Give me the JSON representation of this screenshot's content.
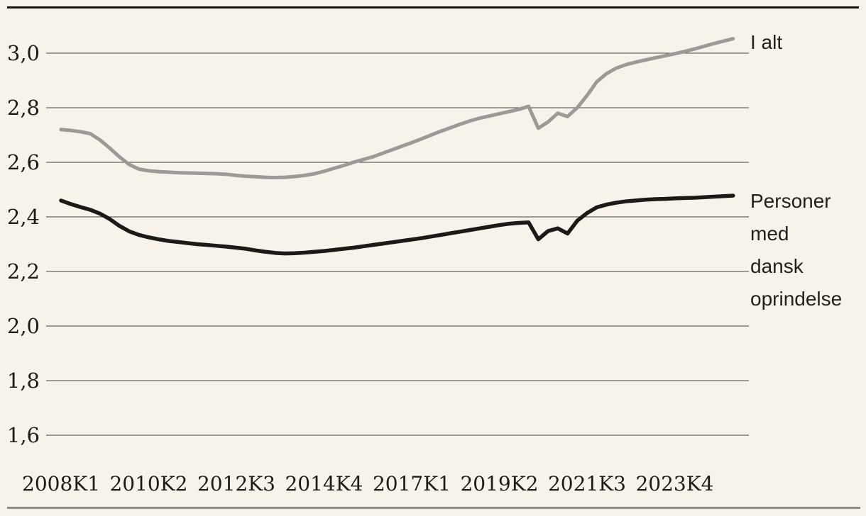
{
  "page": {
    "background_color": "#f7f2ea",
    "top_rule_color": "#17150f",
    "bottom_rule_color": "#908c84",
    "grid_color": "#45423d",
    "text_color": "#1d1b18"
  },
  "chart_data": {
    "type": "line",
    "title": "",
    "xlabel": "",
    "ylabel": "",
    "grid": "horizontal",
    "legend_position": "right-end-of-line",
    "x_unit": "quarter",
    "x_start": "2008K1",
    "x_end": "2025K2",
    "x_tick_labels": [
      "2008K1",
      "2010K2",
      "2012K3",
      "2014K4",
      "2017K1",
      "2019K2",
      "2021K3",
      "2023K4"
    ],
    "x_tick_indices": [
      0,
      9,
      18,
      27,
      36,
      45,
      54,
      63
    ],
    "y_tick_labels": [
      "3,0",
      "2,8",
      "2,6",
      "2,4",
      "2,2",
      "2,0",
      "1,8",
      "1,6"
    ],
    "y_tick_values": [
      3.0,
      2.8,
      2.6,
      2.4,
      2.2,
      2.0,
      1.8,
      1.6
    ],
    "ylim": [
      1.5,
      3.1
    ],
    "decimal_style": "comma",
    "series": [
      {
        "name": "I alt",
        "label_display": "I alt",
        "color": "#9b9a96",
        "width": 5,
        "values": [
          2.72,
          2.717,
          2.712,
          2.705,
          2.682,
          2.652,
          2.62,
          2.592,
          2.575,
          2.569,
          2.566,
          2.564,
          2.562,
          2.561,
          2.56,
          2.559,
          2.558,
          2.556,
          2.552,
          2.549,
          2.547,
          2.545,
          2.544,
          2.545,
          2.548,
          2.552,
          2.558,
          2.567,
          2.578,
          2.588,
          2.6,
          2.61,
          2.62,
          2.633,
          2.646,
          2.659,
          2.672,
          2.686,
          2.7,
          2.714,
          2.727,
          2.74,
          2.752,
          2.762,
          2.77,
          2.778,
          2.786,
          2.794,
          2.805,
          2.725,
          2.748,
          2.78,
          2.768,
          2.8,
          2.845,
          2.895,
          2.925,
          2.945,
          2.958,
          2.967,
          2.975,
          2.983,
          2.99,
          2.998,
          3.006,
          3.015,
          3.025,
          3.035,
          3.044,
          3.053
        ]
      },
      {
        "name": "Personer med dansk oprindelse",
        "label_display": "Personer\nmed\ndansk\noprindelse",
        "color": "#1c1a16",
        "width": 5.5,
        "values": [
          2.46,
          2.447,
          2.436,
          2.426,
          2.412,
          2.392,
          2.367,
          2.347,
          2.334,
          2.325,
          2.318,
          2.312,
          2.308,
          2.304,
          2.3,
          2.297,
          2.294,
          2.291,
          2.287,
          2.283,
          2.277,
          2.272,
          2.268,
          2.266,
          2.267,
          2.269,
          2.272,
          2.275,
          2.279,
          2.283,
          2.287,
          2.292,
          2.297,
          2.302,
          2.307,
          2.312,
          2.317,
          2.322,
          2.328,
          2.334,
          2.34,
          2.346,
          2.352,
          2.358,
          2.364,
          2.37,
          2.375,
          2.378,
          2.38,
          2.318,
          2.348,
          2.358,
          2.339,
          2.386,
          2.414,
          2.435,
          2.445,
          2.452,
          2.457,
          2.46,
          2.463,
          2.465,
          2.466,
          2.468,
          2.469,
          2.47,
          2.472,
          2.474,
          2.476,
          2.478
        ]
      }
    ]
  }
}
